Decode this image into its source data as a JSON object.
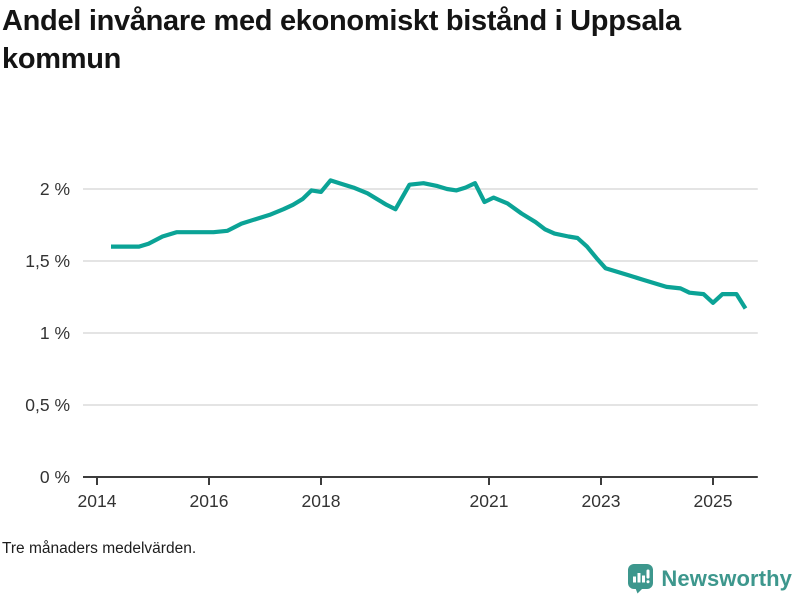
{
  "header": {
    "title": "Andel invånare med ekonomiskt bistånd i Uppsala kommun"
  },
  "footer": {
    "note": "Tre månaders medelvärden.",
    "brand_name": "Newsworthy"
  },
  "colors": {
    "line": "#0ba396",
    "grid": "#dcdcdc",
    "axis": "#3c3c3c",
    "tick_label": "#333333",
    "brand": "#3d978d",
    "title": "#141414"
  },
  "chart_data": {
    "type": "line",
    "title": "Andel invånare med ekonomiskt bistånd i Uppsala kommun",
    "note": "Tre månaders medelvärden.",
    "unit": "%",
    "xlabel": "",
    "ylabel": "",
    "grid": "horizontal",
    "legend": "none",
    "xlim": [
      2013.75,
      2025.8
    ],
    "ylim": [
      0,
      2.17
    ],
    "y_ticks": [
      {
        "value": 0,
        "label": "0 %"
      },
      {
        "value": 0.5,
        "label": "0,5 %"
      },
      {
        "value": 1,
        "label": "1 %"
      },
      {
        "value": 1.5,
        "label": "1,5 %"
      },
      {
        "value": 2,
        "label": "2 %"
      }
    ],
    "x_ticks": [
      {
        "value": 2014,
        "label": "2014"
      },
      {
        "value": 2016,
        "label": "2016"
      },
      {
        "value": 2018,
        "label": "2018"
      },
      {
        "value": 2021,
        "label": "2021"
      },
      {
        "value": 2023,
        "label": "2023"
      },
      {
        "value": 2025,
        "label": "2025"
      }
    ],
    "series": [
      {
        "name": "Andel invånare med ekonomiskt bistånd",
        "color": "#0ba396",
        "points": [
          [
            2014.25,
            1.6
          ],
          [
            2014.5,
            1.6
          ],
          [
            2014.75,
            1.6
          ],
          [
            2014.92,
            1.62
          ],
          [
            2015.17,
            1.67
          ],
          [
            2015.42,
            1.7
          ],
          [
            2015.75,
            1.7
          ],
          [
            2016.08,
            1.7
          ],
          [
            2016.33,
            1.71
          ],
          [
            2016.58,
            1.76
          ],
          [
            2016.83,
            1.79
          ],
          [
            2017.08,
            1.82
          ],
          [
            2017.33,
            1.86
          ],
          [
            2017.5,
            1.89
          ],
          [
            2017.67,
            1.93
          ],
          [
            2017.83,
            1.99
          ],
          [
            2018.0,
            1.98
          ],
          [
            2018.17,
            2.06
          ],
          [
            2018.33,
            2.04
          ],
          [
            2018.58,
            2.01
          ],
          [
            2018.83,
            1.97
          ],
          [
            2019.0,
            1.93
          ],
          [
            2019.17,
            1.89
          ],
          [
            2019.33,
            1.86
          ],
          [
            2019.58,
            2.03
          ],
          [
            2019.83,
            2.04
          ],
          [
            2020.08,
            2.02
          ],
          [
            2020.25,
            2.0
          ],
          [
            2020.42,
            1.99
          ],
          [
            2020.58,
            2.01
          ],
          [
            2020.75,
            2.04
          ],
          [
            2020.92,
            1.91
          ],
          [
            2021.08,
            1.94
          ],
          [
            2021.33,
            1.9
          ],
          [
            2021.58,
            1.83
          ],
          [
            2021.83,
            1.77
          ],
          [
            2022.0,
            1.72
          ],
          [
            2022.17,
            1.69
          ],
          [
            2022.42,
            1.67
          ],
          [
            2022.58,
            1.66
          ],
          [
            2022.75,
            1.6
          ],
          [
            2022.92,
            1.52
          ],
          [
            2023.08,
            1.45
          ],
          [
            2023.25,
            1.43
          ],
          [
            2023.5,
            1.4
          ],
          [
            2023.75,
            1.37
          ],
          [
            2024.0,
            1.34
          ],
          [
            2024.17,
            1.32
          ],
          [
            2024.42,
            1.31
          ],
          [
            2024.58,
            1.28
          ],
          [
            2024.83,
            1.27
          ],
          [
            2025.0,
            1.21
          ],
          [
            2025.17,
            1.27
          ],
          [
            2025.42,
            1.27
          ],
          [
            2025.58,
            1.17
          ]
        ]
      }
    ]
  }
}
